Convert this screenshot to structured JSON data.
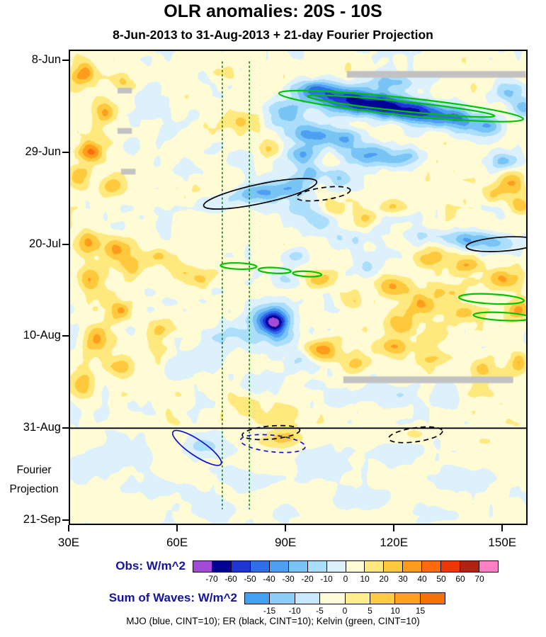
{
  "chart_data": {
    "type": "heatmap",
    "title": "OLR anomalies: 20S - 10S",
    "subtitle": "8-Jun-2013 to 31-Aug-2013 + 21-day Fourier Projection",
    "caption": "MJO (blue, CINT=10); ER (black, CINT=10); Kelvin (green, CINT=10)",
    "projection_note": {
      "line1": "Fourier",
      "line2": "Projection"
    },
    "x_axis": {
      "range_deg": [
        30,
        157
      ],
      "ticks": [
        {
          "label": "30E",
          "lon": 30
        },
        {
          "label": "60E",
          "lon": 60
        },
        {
          "label": "90E",
          "lon": 90
        },
        {
          "label": "120E",
          "lon": 120
        },
        {
          "label": "150E",
          "lon": 150
        }
      ]
    },
    "y_axis": {
      "range_days": [
        -2.4,
        106.1
      ],
      "ticks": [
        {
          "label": "8-Jun",
          "day": 0
        },
        {
          "label": "29-Jun",
          "day": 21
        },
        {
          "label": "20-Jul",
          "day": 42
        },
        {
          "label": "10-Aug",
          "day": 63
        },
        {
          "label": "31-Aug",
          "day": 84
        },
        {
          "label": "21-Sep",
          "day": 105
        }
      ]
    },
    "separator_day": 84,
    "guide_lines": {
      "lons": [
        72.5,
        80
      ],
      "color": "#007A00",
      "span_days": [
        0.3,
        102.5
      ]
    },
    "contour_colors": {
      "kelvin": "#00C300",
      "er": "#000000",
      "mjo": "#1111CC"
    },
    "gray_color": "#C2C2C2",
    "gray_bars": [
      [
        107,
        156.5,
        2.5,
        1.5
      ],
      [
        43.5,
        47.5,
        6.3,
        1.3
      ],
      [
        43.5,
        47.5,
        15.5,
        1.3
      ],
      [
        44.5,
        48.5,
        24.8,
        1.3
      ],
      [
        106,
        153,
        72.2,
        1.5
      ]
    ],
    "colorbars": [
      {
        "title": "Obs: W/m^2",
        "levels": [
          -70,
          -60,
          -50,
          -40,
          -30,
          -20,
          -10,
          0,
          10,
          20,
          30,
          40,
          50,
          60,
          70
        ],
        "colors": [
          "#A14BD6",
          "#020297",
          "#1F35D4",
          "#2E6FE8",
          "#4D9FF2",
          "#78C4F5",
          "#ABDEFA",
          "#DCF1FC",
          "#FFFBD5",
          "#FFE97E",
          "#FFC93E",
          "#FF9C1B",
          "#FF6A0D",
          "#EE3606",
          "#B22213",
          "#FF7FC4"
        ]
      },
      {
        "title": "Sum of Waves: W/m^2",
        "levels": [
          -15,
          -10,
          -5,
          0,
          5,
          10,
          15
        ],
        "colors": [
          "#44A1F1",
          "#8CCCF8",
          "#C8E8FB",
          "#FDFBD8",
          "#FFED8F",
          "#FFCB43",
          "#FFA01E",
          "#F47206"
        ]
      }
    ],
    "overlays": [
      [
        "kelvin",
        122,
        10.5,
        34,
        2.0,
        6,
        0
      ],
      [
        "kelvin",
        122,
        10.5,
        26,
        1.1,
        6,
        0
      ],
      [
        "kelvin",
        77,
        47,
        5,
        0.7,
        2,
        0
      ],
      [
        "kelvin",
        87,
        48,
        4.5,
        0.65,
        3,
        0
      ],
      [
        "kelvin",
        96,
        48.8,
        4,
        0.6,
        3,
        0
      ],
      [
        "kelvin",
        147,
        54.5,
        9,
        1.1,
        3,
        0
      ],
      [
        "kelvin",
        150,
        58.5,
        8,
        0.9,
        3,
        0
      ],
      [
        "er",
        83,
        30.5,
        16,
        2.2,
        -12,
        0
      ],
      [
        "er",
        150,
        42,
        10,
        1.6,
        -4,
        0
      ],
      [
        "er",
        100.5,
        30.5,
        7.5,
        1.4,
        -8,
        1
      ],
      [
        "er",
        86,
        85,
        8,
        1.5,
        -5,
        1
      ],
      [
        "er",
        126,
        85.5,
        7.5,
        1.6,
        -8,
        1
      ],
      [
        "mjo",
        65.5,
        88.5,
        8,
        1.8,
        34,
        0
      ],
      [
        "mjo",
        86.5,
        87.5,
        9,
        1.9,
        6,
        1
      ]
    ],
    "field": {
      "base_obs": 4,
      "base_proj": 2,
      "noise_obs": 7.5,
      "noise_proj": 3,
      "blobs": [
        [
          98,
          7,
          6,
          2.5,
          -45
        ],
        [
          108,
          9,
          8,
          2.8,
          -55
        ],
        [
          118,
          10.5,
          8,
          2.6,
          -62
        ],
        [
          128,
          12,
          7,
          2.5,
          -55
        ],
        [
          137,
          13.5,
          6,
          2.5,
          -42
        ],
        [
          146,
          15,
          5,
          2.2,
          -30
        ],
        [
          120,
          5,
          7,
          2,
          -32
        ],
        [
          90,
          12,
          5,
          3,
          -32
        ],
        [
          97,
          17,
          5,
          2.5,
          -35
        ],
        [
          106,
          18,
          5,
          2.2,
          -30
        ],
        [
          152,
          7,
          4,
          2.5,
          -28
        ],
        [
          156,
          11,
          3,
          2.5,
          -30
        ],
        [
          115,
          21,
          5,
          2.2,
          -25
        ],
        [
          125,
          22,
          4,
          2,
          -20
        ],
        [
          95,
          22,
          4,
          2.5,
          -32
        ],
        [
          110,
          22,
          5,
          2.5,
          -25
        ],
        [
          120,
          23,
          4,
          2,
          -18
        ],
        [
          150,
          23,
          4,
          2.2,
          -26
        ],
        [
          97,
          26,
          4,
          2,
          -26
        ],
        [
          105,
          27,
          4,
          2,
          -20
        ],
        [
          85,
          30,
          5,
          2,
          -30
        ],
        [
          78,
          31,
          5,
          2,
          -24
        ],
        [
          92,
          29,
          4,
          2,
          -26
        ],
        [
          70,
          33,
          4,
          2,
          -14
        ],
        [
          95,
          34,
          4,
          2.5,
          -24
        ],
        [
          100,
          37,
          4,
          2.5,
          -24
        ],
        [
          107,
          41,
          4,
          2.2,
          -16
        ],
        [
          93,
          45,
          4,
          2.5,
          -18
        ],
        [
          140,
          41,
          6,
          2.2,
          -36
        ],
        [
          149,
          42,
          5,
          2,
          -30
        ],
        [
          128,
          40,
          4,
          1.8,
          -18
        ],
        [
          113,
          47,
          4,
          2.2,
          -14
        ],
        [
          90,
          50,
          3.5,
          2,
          -14
        ],
        [
          87,
          60,
          3.5,
          2.2,
          -62
        ],
        [
          86,
          58,
          5.5,
          3.2,
          -35
        ],
        [
          89,
          63,
          4.5,
          2.2,
          -25
        ],
        [
          80,
          63,
          4.5,
          2.5,
          -16
        ],
        [
          71,
          63,
          4.5,
          2.5,
          -14
        ],
        [
          95,
          69,
          5,
          2.5,
          -16
        ],
        [
          85,
          74,
          4.5,
          2.5,
          -13
        ],
        [
          104,
          77,
          5,
          2.5,
          -11
        ],
        [
          60,
          70,
          4.5,
          2.5,
          -11
        ],
        [
          120,
          76,
          5,
          2.5,
          -12
        ],
        [
          134,
          78,
          5,
          2,
          -10
        ],
        [
          48,
          79,
          5,
          2,
          -10
        ],
        [
          52,
          10,
          5,
          3.5,
          -12
        ],
        [
          58,
          16,
          4.5,
          2.5,
          -10
        ],
        [
          48,
          20,
          4,
          2.5,
          -10
        ],
        [
          62,
          25,
          4.5,
          3.5,
          -10
        ],
        [
          55,
          35,
          4.5,
          3.5,
          -9
        ],
        [
          65,
          12,
          3.5,
          2.5,
          -11
        ],
        [
          70,
          4,
          4,
          2,
          -10
        ],
        [
          34,
          3,
          3.5,
          2.5,
          30
        ],
        [
          45,
          5,
          3,
          2,
          16
        ],
        [
          40,
          12,
          3.5,
          2.5,
          25
        ],
        [
          36,
          21,
          3.5,
          2.5,
          36
        ],
        [
          33,
          27,
          3,
          2.5,
          28
        ],
        [
          42,
          29,
          3.5,
          2,
          22
        ],
        [
          35,
          42,
          3.5,
          2.5,
          26
        ],
        [
          44,
          43,
          4,
          2.5,
          28
        ],
        [
          48,
          47,
          3.5,
          2.5,
          22
        ],
        [
          55,
          45,
          3.5,
          2,
          18
        ],
        [
          36,
          50,
          3.5,
          3,
          24
        ],
        [
          44,
          57,
          3.5,
          2.5,
          30
        ],
        [
          38,
          64,
          3.5,
          3,
          30
        ],
        [
          45,
          70,
          3.5,
          2.5,
          22
        ],
        [
          34,
          74,
          3,
          2.5,
          26
        ],
        [
          55,
          68,
          3.5,
          2.5,
          15
        ],
        [
          60,
          48,
          3.5,
          2,
          15
        ],
        [
          66,
          50,
          3.5,
          2,
          16
        ],
        [
          55,
          62,
          3.5,
          2.5,
          18
        ],
        [
          72,
          3,
          3.5,
          2,
          20
        ],
        [
          78,
          14,
          3.5,
          2,
          14
        ],
        [
          85,
          20,
          3.5,
          1.8,
          16
        ],
        [
          103,
          34,
          4,
          2,
          18
        ],
        [
          112,
          36,
          3.5,
          1.8,
          16
        ],
        [
          120,
          33,
          3.5,
          1.8,
          16
        ],
        [
          152,
          28,
          3.5,
          2.5,
          30
        ],
        [
          155,
          33,
          3,
          2,
          22
        ],
        [
          148,
          31,
          3,
          1.8,
          16
        ],
        [
          130,
          45,
          4.5,
          2.2,
          24
        ],
        [
          140,
          47,
          3.5,
          1.8,
          20
        ],
        [
          150,
          50,
          4.5,
          2.5,
          34
        ],
        [
          155,
          57,
          3.5,
          2.5,
          28
        ],
        [
          120,
          52,
          4.5,
          2.5,
          26
        ],
        [
          128,
          56,
          4.5,
          2.5,
          30
        ],
        [
          135,
          53,
          4,
          2,
          20
        ],
        [
          122,
          60,
          4.5,
          2.5,
          24
        ],
        [
          132,
          62,
          4,
          2.5,
          20
        ],
        [
          140,
          58,
          3.5,
          2.2,
          20
        ],
        [
          100,
          50,
          4.5,
          2.2,
          20
        ],
        [
          108,
          55,
          3.5,
          2.2,
          18
        ],
        [
          100,
          66,
          4.5,
          2.5,
          28
        ],
        [
          110,
          69,
          4,
          2.2,
          20
        ],
        [
          120,
          65,
          4,
          2.2,
          22
        ],
        [
          130,
          69,
          4,
          2.2,
          16
        ],
        [
          145,
          71,
          3.5,
          2.5,
          20
        ],
        [
          155,
          69,
          3,
          2.5,
          24
        ],
        [
          78,
          78,
          3.5,
          2,
          14
        ],
        [
          90,
          80,
          3.5,
          1.8,
          12
        ],
        [
          90,
          86,
          4.5,
          1.8,
          20
        ],
        [
          126,
          85.5,
          3.5,
          1.4,
          12
        ],
        [
          145,
          87,
          5,
          1.8,
          10
        ],
        [
          66,
          88,
          4.5,
          2.5,
          -12
        ],
        [
          45,
          90,
          7,
          3.5,
          -8
        ],
        [
          70,
          88,
          5,
          2.5,
          -9
        ],
        [
          86,
          87.5,
          5.5,
          1.8,
          8
        ],
        [
          100,
          92,
          7,
          3.5,
          -8
        ],
        [
          120,
          90,
          7,
          2.5,
          -6
        ],
        [
          140,
          96,
          7,
          2.5,
          -8
        ],
        [
          80,
          96,
          7,
          2.5,
          -8
        ],
        [
          55,
          98,
          7,
          2.5,
          -6
        ],
        [
          35,
          93,
          4.5,
          3.5,
          -6
        ],
        [
          110,
          100,
          9,
          2.5,
          -7
        ],
        [
          70,
          103,
          7,
          2.2,
          -6
        ],
        [
          130,
          103,
          5,
          2,
          -5
        ],
        [
          90,
          99,
          5,
          1.8,
          5
        ],
        [
          152,
          92,
          4,
          2.5,
          -5
        ]
      ]
    }
  }
}
